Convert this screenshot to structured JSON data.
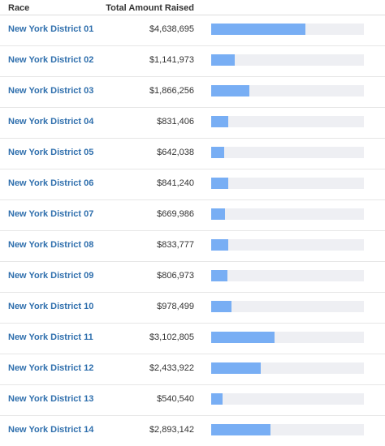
{
  "header": {
    "race_label": "Race",
    "amount_label": "Total Amount Raised"
  },
  "bar_scale_max": 7500000,
  "bar_color": "#78aef4",
  "track_color": "#eeeff3",
  "rows": [
    {
      "race": "New York District 01",
      "amount": "$4,638,695",
      "value": 4638695
    },
    {
      "race": "New York District 02",
      "amount": "$1,141,973",
      "value": 1141973
    },
    {
      "race": "New York District 03",
      "amount": "$1,866,256",
      "value": 1866256
    },
    {
      "race": "New York District 04",
      "amount": "$831,406",
      "value": 831406
    },
    {
      "race": "New York District 05",
      "amount": "$642,038",
      "value": 642038
    },
    {
      "race": "New York District 06",
      "amount": "$841,240",
      "value": 841240
    },
    {
      "race": "New York District 07",
      "amount": "$669,986",
      "value": 669986
    },
    {
      "race": "New York District 08",
      "amount": "$833,777",
      "value": 833777
    },
    {
      "race": "New York District 09",
      "amount": "$806,973",
      "value": 806973
    },
    {
      "race": "New York District 10",
      "amount": "$978,499",
      "value": 978499
    },
    {
      "race": "New York District 11",
      "amount": "$3,102,805",
      "value": 3102805
    },
    {
      "race": "New York District 12",
      "amount": "$2,433,922",
      "value": 2433922
    },
    {
      "race": "New York District 13",
      "amount": "$540,540",
      "value": 540540
    },
    {
      "race": "New York District 14",
      "amount": "$2,893,142",
      "value": 2893142
    }
  ]
}
